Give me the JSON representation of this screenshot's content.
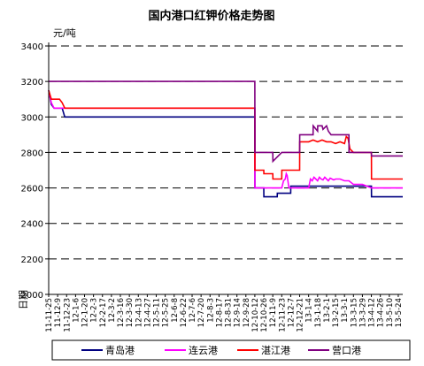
{
  "chart_data": {
    "type": "line",
    "title": "国内港口红钾价格走势图",
    "ylabel": "元/吨",
    "xlabel": "日期",
    "ylim": [
      2000,
      3400
    ],
    "yticks": [
      2000,
      2200,
      2400,
      2600,
      2800,
      3000,
      3200,
      3400
    ],
    "grid": true,
    "legend_position": "bottom",
    "categories": [
      "11-11-25",
      "11-12-9",
      "11-12-23",
      "12-1-6",
      "12-1-20",
      "12-2-3",
      "12-2-17",
      "12-3-2",
      "12-3-16",
      "12-3-30",
      "12-4-13",
      "12-4-27",
      "12-5-11",
      "12-5-25",
      "12-6-8",
      "12-6-22",
      "12-7-6",
      "12-7-20",
      "12-8-3",
      "12-8-17",
      "12-8-31",
      "12-9-14",
      "12-9-28",
      "12-10-12",
      "12-10-26",
      "12-11-9",
      "12-11-23",
      "12-12-7",
      "12-12-21",
      "13-1-4",
      "13-1-18",
      "13-2-1",
      "13-2-15",
      "13-3-1",
      "13-3-15",
      "13-3-29",
      "13-4-12",
      "13-4-26",
      "13-5-10",
      "13-5-24"
    ],
    "series": [
      {
        "name": "青岛港",
        "color": "#000080",
        "x": [
          0,
          0.3,
          0.6,
          1.0,
          1.5,
          1.8,
          23.0,
          23.01,
          24.0,
          24.01,
          25.5,
          25.51,
          27.0,
          27.01,
          28.0,
          29.0,
          30.0,
          32.0,
          34.0,
          36.0,
          36.01,
          39.5
        ],
        "values": [
          3150,
          3070,
          3050,
          3050,
          3050,
          3000,
          3000,
          2600,
          2600,
          2550,
          2550,
          2570,
          2570,
          2610,
          2610,
          2610,
          2610,
          2610,
          2610,
          2610,
          2550,
          2550
        ]
      },
      {
        "name": "连云港",
        "color": "#ff00ff",
        "x": [
          0,
          0.3,
          0.6,
          1.2,
          1.5,
          1.8,
          23.0,
          23.01,
          26.0,
          26.2,
          26.4,
          26.5,
          26.6,
          26.8,
          27.0,
          28.0,
          29.0,
          29.2,
          29.4,
          29.6,
          29.8,
          30.0,
          30.2,
          30.4,
          30.6,
          30.8,
          31.0,
          31.2,
          31.4,
          31.6,
          31.8,
          32.0,
          32.5,
          33.0,
          33.5,
          34.0,
          35.0,
          36.0,
          39.5
        ],
        "values": [
          3150,
          3080,
          3050,
          3050,
          3050,
          3050,
          3050,
          2600,
          2600,
          2640,
          2650,
          2680,
          2670,
          2600,
          2600,
          2600,
          2600,
          2650,
          2640,
          2660,
          2650,
          2640,
          2660,
          2650,
          2645,
          2660,
          2650,
          2640,
          2655,
          2650,
          2645,
          2650,
          2650,
          2640,
          2640,
          2620,
          2620,
          2600,
          2600
        ]
      },
      {
        "name": "湛江港",
        "color": "#ff0000",
        "x": [
          0,
          0.3,
          0.6,
          1.2,
          1.5,
          1.8,
          23.0,
          23.01,
          24.0,
          24.01,
          25.0,
          25.01,
          26.0,
          26.01,
          27.0,
          28.0,
          28.01,
          29.0,
          29.5,
          30.0,
          30.5,
          31.0,
          31.5,
          32.0,
          32.5,
          33.0,
          33.2,
          33.4,
          33.6,
          33.8,
          34.0,
          35.0,
          36.0,
          36.01,
          39.5
        ],
        "values": [
          3150,
          3100,
          3100,
          3100,
          3080,
          3050,
          3050,
          2700,
          2700,
          2680,
          2680,
          2650,
          2650,
          2700,
          2700,
          2700,
          2860,
          2860,
          2870,
          2860,
          2870,
          2860,
          2860,
          2850,
          2860,
          2850,
          2890,
          2880,
          2820,
          2810,
          2800,
          2800,
          2800,
          2650,
          2650
        ]
      },
      {
        "name": "营口港",
        "color": "#800080",
        "x": [
          0,
          23.0,
          23.01,
          24.5,
          25.0,
          25.01,
          26.0,
          27.0,
          28.0,
          28.01,
          29.0,
          29.5,
          29.51,
          30.0,
          30.01,
          30.5,
          30.6,
          31.0,
          31.2,
          31.5,
          32.0,
          33.0,
          33.5,
          33.51,
          36.0,
          36.01,
          39.5
        ],
        "values": [
          3200,
          3200,
          2800,
          2800,
          2800,
          2750,
          2800,
          2800,
          2800,
          2900,
          2900,
          2900,
          2950,
          2920,
          2950,
          2950,
          2930,
          2950,
          2920,
          2900,
          2900,
          2900,
          2900,
          2800,
          2800,
          2780,
          2780
        ]
      }
    ]
  }
}
